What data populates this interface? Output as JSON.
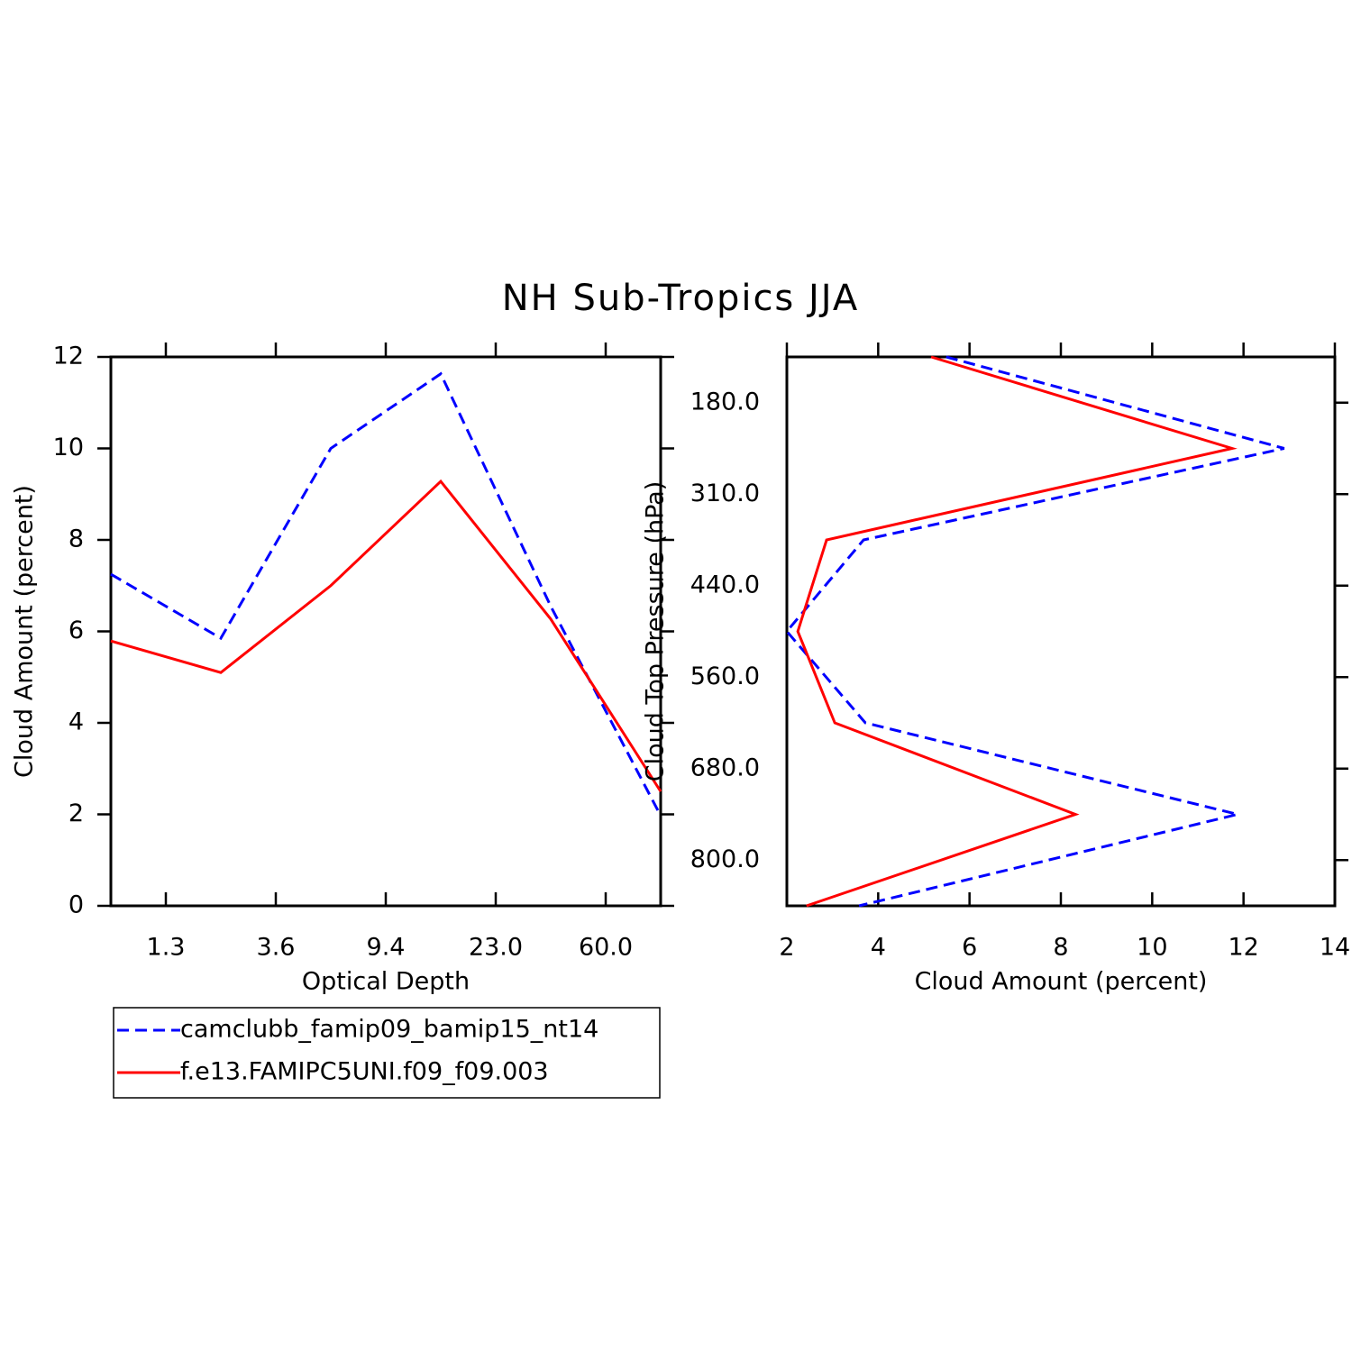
{
  "title": "NH Sub-Tropics JJA",
  "chart_data": [
    {
      "type": "line",
      "xlabel": "Optical Depth",
      "ylabel": "Cloud Amount (percent)",
      "x": [
        0,
        1,
        2,
        3,
        4,
        5
      ],
      "xlim": [
        0,
        5
      ],
      "xticks": [
        {
          "value": 0.5,
          "label": "1.3"
        },
        {
          "value": 1.5,
          "label": "3.6"
        },
        {
          "value": 2.5,
          "label": "9.4"
        },
        {
          "value": 3.5,
          "label": "23.0"
        },
        {
          "value": 4.5,
          "label": "60.0"
        }
      ],
      "ylim": [
        0,
        12
      ],
      "yticks": [
        0,
        2,
        4,
        6,
        8,
        10,
        12
      ],
      "legend": "below",
      "series": [
        {
          "name": "camclubb_famip09_bamip15_nt14",
          "color": "#0000ff",
          "dash": true,
          "values": [
            7.25,
            5.85,
            10.0,
            11.63,
            6.55,
            1.97
          ]
        },
        {
          "name": "f.e13.FAMIPC5UNI.f09_f09.003",
          "color": "#ff0000",
          "dash": false,
          "values": [
            5.79,
            5.1,
            7.0,
            9.28,
            6.27,
            2.5
          ]
        }
      ]
    },
    {
      "type": "line",
      "orientation": "horizontal",
      "xlabel": "Cloud Amount (percent)",
      "ylabel": "Cloud Top Pressure (hPa)",
      "y": [
        0,
        1,
        2,
        3,
        4,
        5,
        6
      ],
      "ylim": [
        6,
        0
      ],
      "yticks": [
        {
          "value": 0.5,
          "label": "180.0"
        },
        {
          "value": 1.5,
          "label": "310.0"
        },
        {
          "value": 2.5,
          "label": "440.0"
        },
        {
          "value": 3.5,
          "label": "560.0"
        },
        {
          "value": 4.5,
          "label": "680.0"
        },
        {
          "value": 5.5,
          "label": "800.0"
        }
      ],
      "xlim": [
        2,
        14
      ],
      "xticks": [
        2,
        4,
        6,
        8,
        10,
        12,
        14
      ],
      "series": [
        {
          "color": "#0000ff",
          "dash": true,
          "values": [
            5.49,
            12.89,
            3.68,
            2.0,
            3.72,
            11.87,
            3.58
          ]
        },
        {
          "color": "#ff0000",
          "dash": false,
          "values": [
            5.16,
            11.75,
            2.87,
            2.24,
            3.05,
            8.32,
            2.43
          ]
        }
      ]
    }
  ]
}
